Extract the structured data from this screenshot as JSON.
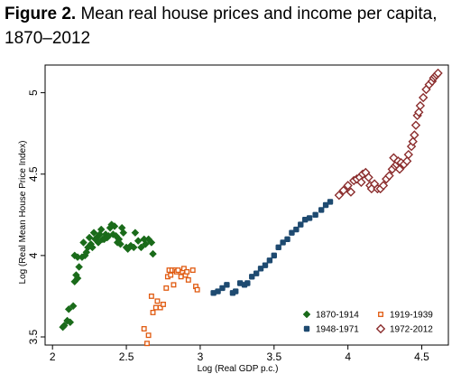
{
  "figure": {
    "label": "Figure 2.",
    "title": "Mean real house prices and income per capita, 1870–2012"
  },
  "chart_data": {
    "type": "scatter",
    "xlabel": "Log (Real GDP p.c.)",
    "ylabel": "Log (Real Mean House Price Index)",
    "xlim": [
      1.95,
      4.68
    ],
    "ylim": [
      3.45,
      5.17
    ],
    "xticks": [
      2,
      2.5,
      3,
      3.5,
      4,
      4.5
    ],
    "yticks": [
      3.5,
      4,
      4.5,
      5
    ],
    "legend_position": "bottom-right",
    "grid": false,
    "series": [
      {
        "name": "1870-1914",
        "marker": "diamond-filled",
        "color": "#1a6b1a",
        "points": [
          [
            2.07,
            3.56
          ],
          [
            2.08,
            3.57
          ],
          [
            2.1,
            3.6
          ],
          [
            2.11,
            3.67
          ],
          [
            2.12,
            3.59
          ],
          [
            2.14,
            3.69
          ],
          [
            2.15,
            3.84
          ],
          [
            2.15,
            4.0
          ],
          [
            2.16,
            3.88
          ],
          [
            2.17,
            3.86
          ],
          [
            2.17,
            3.99
          ],
          [
            2.18,
            3.93
          ],
          [
            2.2,
            3.99
          ],
          [
            2.21,
            4.08
          ],
          [
            2.22,
            4.0
          ],
          [
            2.23,
            4.02
          ],
          [
            2.24,
            4.05
          ],
          [
            2.25,
            4.11
          ],
          [
            2.26,
            4.07
          ],
          [
            2.27,
            4.05
          ],
          [
            2.28,
            4.14
          ],
          [
            2.29,
            4.1
          ],
          [
            2.3,
            4.11
          ],
          [
            2.31,
            4.08
          ],
          [
            2.32,
            4.13
          ],
          [
            2.33,
            4.16
          ],
          [
            2.34,
            4.1
          ],
          [
            2.35,
            4.1
          ],
          [
            2.36,
            4.13
          ],
          [
            2.37,
            4.11
          ],
          [
            2.38,
            4.12
          ],
          [
            2.39,
            4.17
          ],
          [
            2.4,
            4.19
          ],
          [
            2.41,
            4.13
          ],
          [
            2.42,
            4.18
          ],
          [
            2.43,
            4.12
          ],
          [
            2.44,
            4.08
          ],
          [
            2.45,
            4.1
          ],
          [
            2.46,
            4.07
          ],
          [
            2.47,
            4.17
          ],
          [
            2.48,
            4.14
          ],
          [
            2.5,
            4.05
          ],
          [
            2.51,
            4.04
          ],
          [
            2.53,
            4.06
          ],
          [
            2.55,
            4.05
          ],
          [
            2.56,
            4.14
          ],
          [
            2.58,
            4.09
          ],
          [
            2.6,
            4.05
          ],
          [
            2.62,
            4.1
          ],
          [
            2.63,
            4.07
          ],
          [
            2.65,
            4.1
          ],
          [
            2.67,
            4.08
          ],
          [
            2.68,
            4.01
          ]
        ]
      },
      {
        "name": "1919-1939",
        "marker": "square-hollow",
        "color": "#e05a10",
        "points": [
          [
            2.62,
            3.55
          ],
          [
            2.64,
            3.46
          ],
          [
            2.65,
            3.51
          ],
          [
            2.67,
            3.75
          ],
          [
            2.68,
            3.65
          ],
          [
            2.7,
            3.68
          ],
          [
            2.71,
            3.72
          ],
          [
            2.73,
            3.68
          ],
          [
            2.75,
            3.7
          ],
          [
            2.77,
            3.8
          ],
          [
            2.78,
            3.87
          ],
          [
            2.79,
            3.91
          ],
          [
            2.8,
            3.88
          ],
          [
            2.81,
            3.91
          ],
          [
            2.82,
            3.82
          ],
          [
            2.83,
            3.91
          ],
          [
            2.84,
            3.9
          ],
          [
            2.85,
            3.91
          ],
          [
            2.87,
            3.87
          ],
          [
            2.88,
            3.9
          ],
          [
            2.89,
            3.92
          ],
          [
            2.9,
            3.88
          ],
          [
            2.91,
            3.9
          ],
          [
            2.92,
            3.85
          ],
          [
            2.95,
            3.91
          ],
          [
            2.97,
            3.81
          ],
          [
            2.98,
            3.79
          ]
        ]
      },
      {
        "name": "1948-1971",
        "marker": "square-filled",
        "color": "#1e4a70",
        "points": [
          [
            3.09,
            3.77
          ],
          [
            3.12,
            3.78
          ],
          [
            3.15,
            3.8
          ],
          [
            3.18,
            3.82
          ],
          [
            3.22,
            3.77
          ],
          [
            3.24,
            3.78
          ],
          [
            3.27,
            3.83
          ],
          [
            3.3,
            3.82
          ],
          [
            3.32,
            3.83
          ],
          [
            3.35,
            3.87
          ],
          [
            3.38,
            3.89
          ],
          [
            3.41,
            3.92
          ],
          [
            3.44,
            3.94
          ],
          [
            3.47,
            3.97
          ],
          [
            3.5,
            4.0
          ],
          [
            3.53,
            4.05
          ],
          [
            3.56,
            4.08
          ],
          [
            3.59,
            4.1
          ],
          [
            3.62,
            4.14
          ],
          [
            3.65,
            4.16
          ],
          [
            3.68,
            4.19
          ],
          [
            3.71,
            4.22
          ],
          [
            3.74,
            4.23
          ],
          [
            3.78,
            4.25
          ],
          [
            3.82,
            4.28
          ],
          [
            3.85,
            4.31
          ],
          [
            3.88,
            4.33
          ]
        ]
      },
      {
        "name": "1972-2012",
        "marker": "diamond-hollow",
        "color": "#8b2d2d",
        "points": [
          [
            3.94,
            4.37
          ],
          [
            3.97,
            4.4
          ],
          [
            4.0,
            4.43
          ],
          [
            4.02,
            4.39
          ],
          [
            4.04,
            4.46
          ],
          [
            4.06,
            4.47
          ],
          [
            4.08,
            4.48
          ],
          [
            4.09,
            4.45
          ],
          [
            4.1,
            4.5
          ],
          [
            4.12,
            4.51
          ],
          [
            4.14,
            4.48
          ],
          [
            4.15,
            4.43
          ],
          [
            4.16,
            4.41
          ],
          [
            4.18,
            4.44
          ],
          [
            4.2,
            4.41
          ],
          [
            4.22,
            4.41
          ],
          [
            4.24,
            4.43
          ],
          [
            4.26,
            4.47
          ],
          [
            4.28,
            4.49
          ],
          [
            4.3,
            4.53
          ],
          [
            4.31,
            4.6
          ],
          [
            4.32,
            4.55
          ],
          [
            4.33,
            4.56
          ],
          [
            4.34,
            4.58
          ],
          [
            4.35,
            4.53
          ],
          [
            4.36,
            4.57
          ],
          [
            4.38,
            4.56
          ],
          [
            4.4,
            4.58
          ],
          [
            4.41,
            4.62
          ],
          [
            4.43,
            4.67
          ],
          [
            4.44,
            4.7
          ],
          [
            4.45,
            4.74
          ],
          [
            4.46,
            4.8
          ],
          [
            4.47,
            4.86
          ],
          [
            4.48,
            4.88
          ],
          [
            4.49,
            4.92
          ],
          [
            4.51,
            4.97
          ],
          [
            4.53,
            5.02
          ],
          [
            4.55,
            5.05
          ],
          [
            4.57,
            5.07
          ],
          [
            4.58,
            5.09
          ],
          [
            4.59,
            5.1
          ],
          [
            4.6,
            5.11
          ],
          [
            4.61,
            5.12
          ]
        ]
      }
    ]
  }
}
